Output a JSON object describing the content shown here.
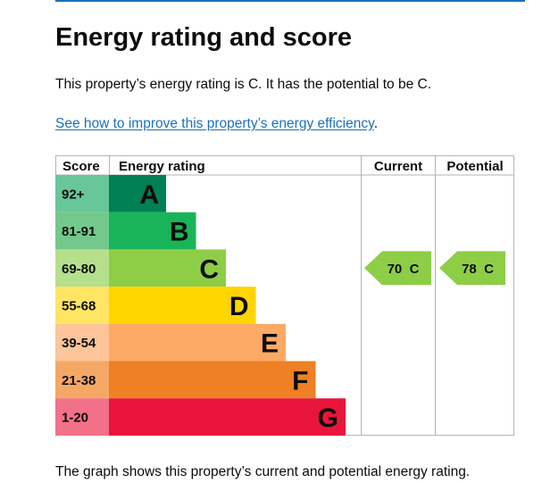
{
  "page": {
    "title": "Energy rating and score",
    "lead": "This property’s energy rating is C. It has the potential to be C.",
    "link_text": "See how to improve this property’s energy efficiency",
    "link_suffix": ".",
    "footer": "The graph shows this property’s current and potential energy rating."
  },
  "chart_data": {
    "type": "bar",
    "headers": {
      "score": "Score",
      "rating": "Energy rating",
      "current": "Current",
      "potential": "Potential"
    },
    "bands": [
      {
        "letter": "A",
        "range": "92+",
        "color": "#008054",
        "scoreColor": "#67c69a",
        "value": 1
      },
      {
        "letter": "B",
        "range": "81-91",
        "color": "#19b459",
        "scoreColor": "#72c98b",
        "value": 2
      },
      {
        "letter": "C",
        "range": "69-80",
        "color": "#8dce46",
        "scoreColor": "#b6df8b",
        "value": 3
      },
      {
        "letter": "D",
        "range": "55-68",
        "color": "#ffd500",
        "scoreColor": "#ffe563",
        "value": 4
      },
      {
        "letter": "E",
        "range": "39-54",
        "color": "#fcaa65",
        "scoreColor": "#fdc599",
        "value": 5
      },
      {
        "letter": "F",
        "range": "21-38",
        "color": "#ef8023",
        "scoreColor": "#f5a866",
        "value": 6
      },
      {
        "letter": "G",
        "range": "1-20",
        "color": "#e9153b",
        "scoreColor": "#f27088",
        "value": 7
      }
    ],
    "current": {
      "score": 70,
      "band": "C",
      "label": "70  C",
      "color": "#8dce46"
    },
    "potential": {
      "score": 78,
      "band": "C",
      "label": "78  C",
      "color": "#8dce46"
    }
  }
}
